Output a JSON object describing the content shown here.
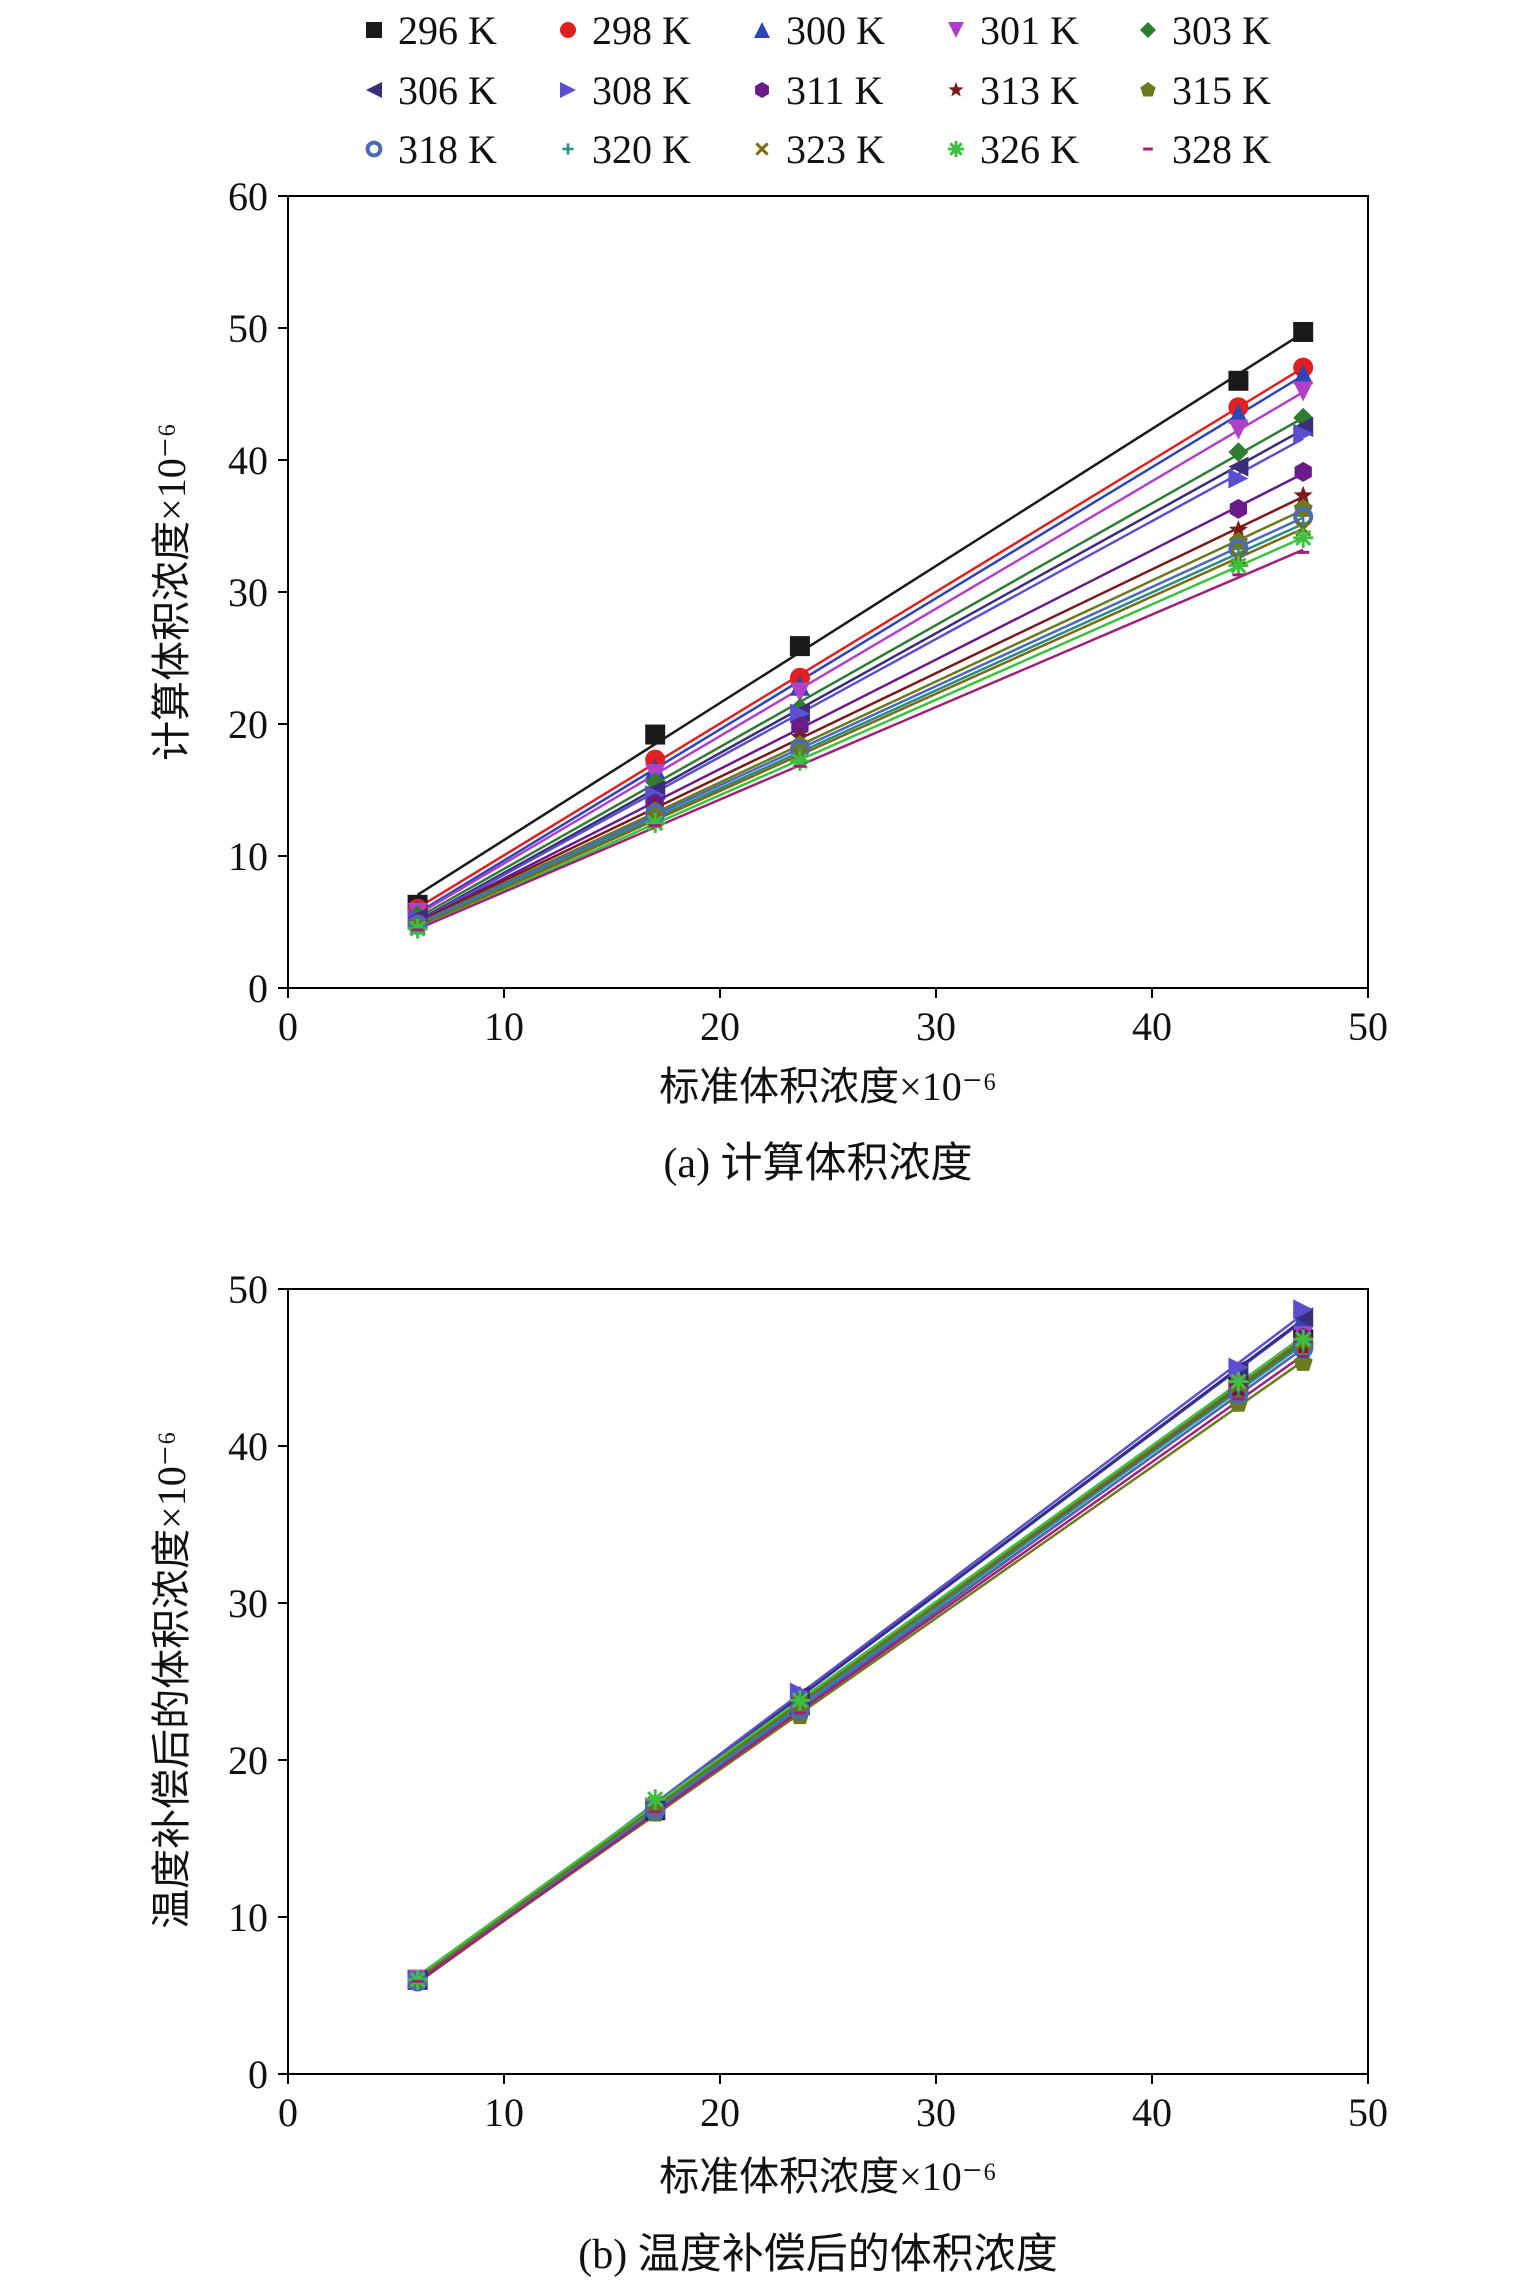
{
  "legend": {
    "items": [
      "296 K",
      "298 K",
      "300 K",
      "301 K",
      "303 K",
      "306 K",
      "308 K",
      "311 K",
      "313 K",
      "315 K",
      "318 K",
      "320 K",
      "323 K",
      "326 K",
      "328 K"
    ]
  },
  "chart_data": [
    {
      "type": "scatter",
      "caption": "(a) 计算体积浓度",
      "xlabel": "标准体积浓度×10⁻⁶",
      "ylabel": "计算体积浓度×10⁻⁶",
      "xlim": [
        0,
        50
      ],
      "ylim": [
        0,
        60
      ],
      "xticks": [
        0,
        10,
        20,
        30,
        40,
        50
      ],
      "yticks": [
        0,
        10,
        20,
        30,
        40,
        50,
        60
      ],
      "grid": false,
      "legend_position": "top",
      "trendlines": true,
      "x": [
        6,
        17,
        23.7,
        44,
        47
      ],
      "series": [
        {
          "name": "296 K",
          "color": "#1a1a1a",
          "marker": "square",
          "values": [
            6.3,
            19.2,
            25.9,
            46.0,
            49.7
          ]
        },
        {
          "name": "298 K",
          "color": "#e02020",
          "marker": "circle",
          "values": [
            6.0,
            17.3,
            23.5,
            44.0,
            47.0
          ]
        },
        {
          "name": "300 K",
          "color": "#2e45b8",
          "marker": "triangle-up",
          "values": [
            5.9,
            16.6,
            22.9,
            43.5,
            46.5
          ]
        },
        {
          "name": "301 K",
          "color": "#b040c8",
          "marker": "triangle-down",
          "values": [
            5.7,
            16.2,
            22.4,
            42.3,
            45.2
          ]
        },
        {
          "name": "303 K",
          "color": "#2e7d32",
          "marker": "diamond",
          "values": [
            5.5,
            15.6,
            21.2,
            40.6,
            43.2
          ]
        },
        {
          "name": "306 K",
          "color": "#3a2d7a",
          "marker": "triangle-left",
          "values": [
            5.3,
            15.0,
            20.9,
            39.5,
            42.5
          ]
        },
        {
          "name": "308 K",
          "color": "#5a4fd0",
          "marker": "triangle-right",
          "values": [
            5.2,
            14.6,
            20.8,
            38.6,
            42.0
          ]
        },
        {
          "name": "311 K",
          "color": "#6a1b8a",
          "marker": "hexagon",
          "values": [
            5.0,
            14.0,
            19.8,
            36.3,
            39.1
          ]
        },
        {
          "name": "313 K",
          "color": "#7a1a1a",
          "marker": "star",
          "values": [
            4.9,
            13.7,
            19.0,
            34.7,
            37.3
          ]
        },
        {
          "name": "315 K",
          "color": "#6b7a1e",
          "marker": "pentagon",
          "values": [
            4.8,
            13.4,
            18.4,
            33.8,
            36.3
          ]
        },
        {
          "name": "318 K",
          "color": "#4a6ab8",
          "marker": "circle-open",
          "values": [
            4.8,
            13.2,
            18.1,
            33.3,
            35.7
          ]
        },
        {
          "name": "320 K",
          "color": "#2a8a8a",
          "marker": "plus",
          "values": [
            4.7,
            13.0,
            17.8,
            32.9,
            35.2
          ]
        },
        {
          "name": "323 K",
          "color": "#7a6a10",
          "marker": "x",
          "values": [
            4.6,
            12.8,
            17.6,
            32.6,
            34.8
          ]
        },
        {
          "name": "326 K",
          "color": "#3cc040",
          "marker": "asterisk",
          "values": [
            4.5,
            12.5,
            17.2,
            32.0,
            34.1
          ]
        },
        {
          "name": "328 K",
          "color": "#a0207a",
          "marker": "dash",
          "values": [
            4.4,
            12.3,
            16.8,
            31.3,
            33.0
          ]
        }
      ]
    },
    {
      "type": "scatter",
      "caption": "(b) 温度补偿后的体积浓度",
      "xlabel": "标准体积浓度×10⁻⁶",
      "ylabel": "温度补偿后的体积浓度×10⁻⁶",
      "xlim": [
        0,
        50
      ],
      "ylim": [
        0,
        50
      ],
      "xticks": [
        0,
        10,
        20,
        30,
        40,
        50
      ],
      "yticks": [
        0,
        10,
        20,
        30,
        40,
        50
      ],
      "grid": false,
      "trendlines": true,
      "x": [
        6,
        17,
        23.7,
        44,
        47
      ],
      "series": [
        {
          "name": "296 K",
          "color": "#1a1a1a",
          "marker": "square",
          "values": [
            6.0,
            16.8,
            23.5,
            43.8,
            46.8
          ]
        },
        {
          "name": "298 K",
          "color": "#e02020",
          "marker": "circle",
          "values": [
            5.9,
            16.9,
            23.4,
            43.7,
            46.5
          ]
        },
        {
          "name": "300 K",
          "color": "#2e45b8",
          "marker": "triangle-up",
          "values": [
            6.0,
            16.9,
            24.1,
            44.7,
            48.2
          ]
        },
        {
          "name": "301 K",
          "color": "#b040c8",
          "marker": "triangle-down",
          "values": [
            6.0,
            16.8,
            23.7,
            44.0,
            47.0
          ]
        },
        {
          "name": "303 K",
          "color": "#2e7d32",
          "marker": "diamond",
          "values": [
            6.0,
            16.8,
            23.4,
            43.6,
            46.6
          ]
        },
        {
          "name": "306 K",
          "color": "#3a2d7a",
          "marker": "triangle-left",
          "values": [
            6.0,
            16.9,
            24.1,
            44.9,
            48.2
          ]
        },
        {
          "name": "308 K",
          "color": "#5a4fd0",
          "marker": "triangle-right",
          "values": [
            6.0,
            17.0,
            24.3,
            45.0,
            48.7
          ]
        },
        {
          "name": "311 K",
          "color": "#6a1b8a",
          "marker": "hexagon",
          "values": [
            5.9,
            16.7,
            23.6,
            43.6,
            46.9
          ]
        },
        {
          "name": "313 K",
          "color": "#7a1a1a",
          "marker": "star",
          "values": [
            5.9,
            16.6,
            23.2,
            43.2,
            46.3
          ]
        },
        {
          "name": "315 K",
          "color": "#6b7a1e",
          "marker": "pentagon",
          "values": [
            5.9,
            16.6,
            22.8,
            42.7,
            45.3
          ]
        },
        {
          "name": "318 K",
          "color": "#4a6ab8",
          "marker": "circle-open",
          "values": [
            5.9,
            16.8,
            23.2,
            43.3,
            46.2
          ]
        },
        {
          "name": "320 K",
          "color": "#2a8a8a",
          "marker": "plus",
          "values": [
            6.0,
            17.0,
            23.4,
            43.6,
            46.4
          ]
        },
        {
          "name": "323 K",
          "color": "#7a6a10",
          "marker": "x",
          "values": [
            6.0,
            17.2,
            23.6,
            43.9,
            46.6
          ]
        },
        {
          "name": "326 K",
          "color": "#3cc040",
          "marker": "asterisk",
          "values": [
            6.0,
            17.5,
            23.8,
            44.1,
            46.8
          ]
        },
        {
          "name": "328 K",
          "color": "#a0207a",
          "marker": "dash",
          "values": [
            5.9,
            16.7,
            23.0,
            43.0,
            45.7
          ]
        }
      ]
    }
  ]
}
